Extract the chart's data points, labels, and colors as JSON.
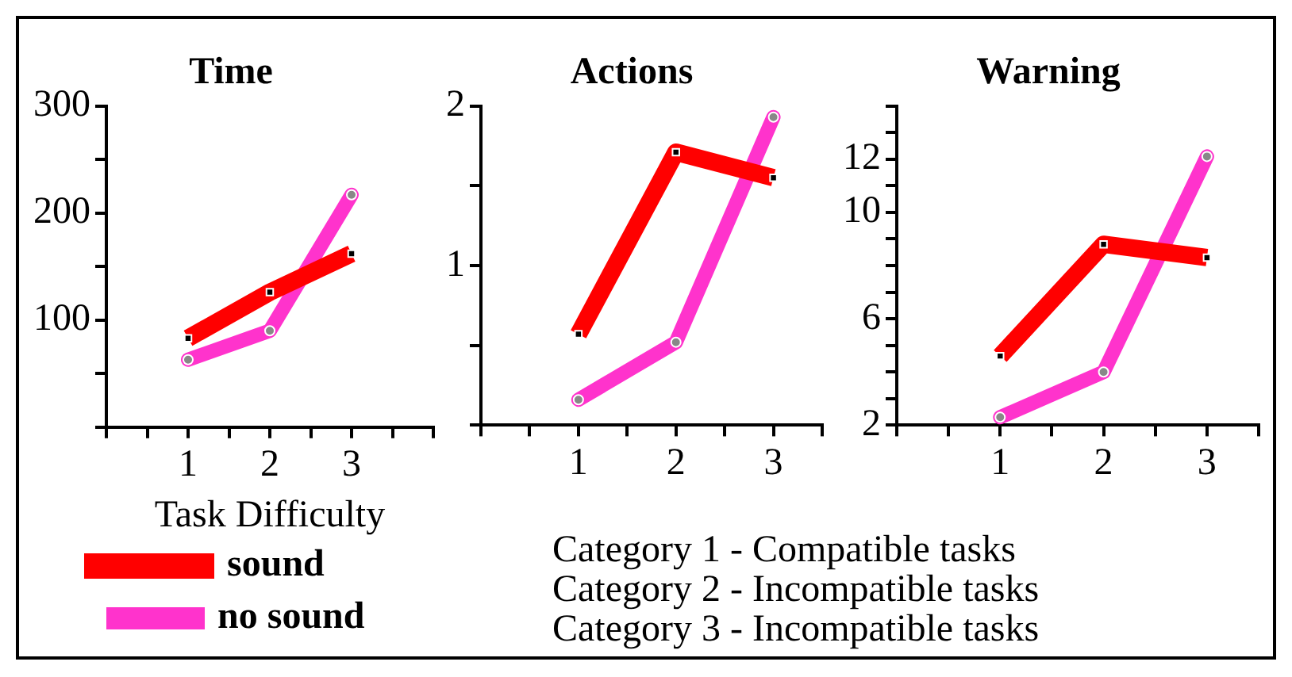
{
  "chart_data": [
    {
      "type": "line",
      "title": "Time",
      "xlabel": "Task Difficulty",
      "x": [
        1,
        2,
        3
      ],
      "xlim": [
        0,
        4
      ],
      "xticks": [
        {
          "value": 0,
          "label": null
        },
        {
          "value": 0.5,
          "label": null
        },
        1,
        {
          "value": 1.5,
          "label": null
        },
        2,
        {
          "value": 2.5,
          "label": null
        },
        3,
        {
          "value": 3.5,
          "label": null
        },
        {
          "value": 4,
          "label": null
        }
      ],
      "ylim": [
        0,
        300
      ],
      "yticks": [
        {
          "value": 0,
          "label": null
        },
        {
          "value": 50,
          "label": null
        },
        100,
        {
          "value": 150,
          "label": null
        },
        200,
        {
          "value": 250,
          "label": null
        },
        300
      ],
      "grid": false,
      "legend": "bottom left",
      "series": [
        {
          "name": "sound",
          "color": "#ff0000",
          "values": [
            83,
            126,
            162
          ],
          "marker": "square"
        },
        {
          "name": "no sound",
          "color": "#ff33cc",
          "values": [
            63,
            90,
            217
          ],
          "marker": "circle"
        }
      ],
      "annotations": [
        "Category 1  - Compatible tasks",
        "Category 2 - Incompatible tasks",
        "Category 3 - Incompatible tasks"
      ]
    },
    {
      "type": "line",
      "title": "Actions",
      "x": [
        1,
        2,
        3
      ],
      "xlim": [
        0,
        3.5
      ],
      "xticks": [
        {
          "value": 0,
          "label": null
        },
        {
          "value": 0.5,
          "label": null
        },
        1,
        {
          "value": 1.5,
          "label": null
        },
        2,
        {
          "value": 2.5,
          "label": null
        },
        3,
        {
          "value": 3.5,
          "label": null
        }
      ],
      "ylim": [
        0,
        2
      ],
      "yticks": [
        {
          "value": 0,
          "label": null
        },
        {
          "value": 0.5,
          "label": null
        },
        1,
        {
          "value": 1.5,
          "label": null
        },
        2
      ],
      "grid": false,
      "series": [
        {
          "color": "#ff0000",
          "values": [
            0.57,
            1.71,
            1.55
          ],
          "marker": "square"
        },
        {
          "color": "#ff33cc",
          "values": [
            0.16,
            0.52,
            1.93
          ],
          "marker": "circle"
        }
      ]
    },
    {
      "type": "line",
      "title": "Warning",
      "x": [
        1,
        2,
        3
      ],
      "xlim": [
        0,
        3.5
      ],
      "xticks": [
        {
          "value": 0,
          "label": null
        },
        {
          "value": 0.5,
          "label": null
        },
        1,
        {
          "value": 1.5,
          "label": null
        },
        2,
        {
          "value": 2.5,
          "label": null
        },
        3,
        {
          "value": 3.5,
          "label": null
        }
      ],
      "ylim": [
        2,
        14
      ],
      "yticks": [
        2,
        {
          "value": 3,
          "label": null
        },
        {
          "value": 4,
          "label": null
        },
        {
          "value": 5,
          "label": null
        },
        6,
        {
          "value": 7,
          "label": null
        },
        {
          "value": 8,
          "label": null
        },
        {
          "value": 9,
          "label": null
        },
        10,
        {
          "value": 11,
          "label": null
        },
        12,
        {
          "value": 13,
          "label": null
        },
        {
          "value": 14,
          "label": null
        }
      ],
      "grid": false,
      "series": [
        {
          "color": "#ff0000",
          "values": [
            4.6,
            8.8,
            8.3
          ],
          "marker": "square"
        },
        {
          "color": "#ff33cc",
          "values": [
            2.3,
            4.0,
            12.1
          ],
          "marker": "circle"
        }
      ]
    }
  ]
}
